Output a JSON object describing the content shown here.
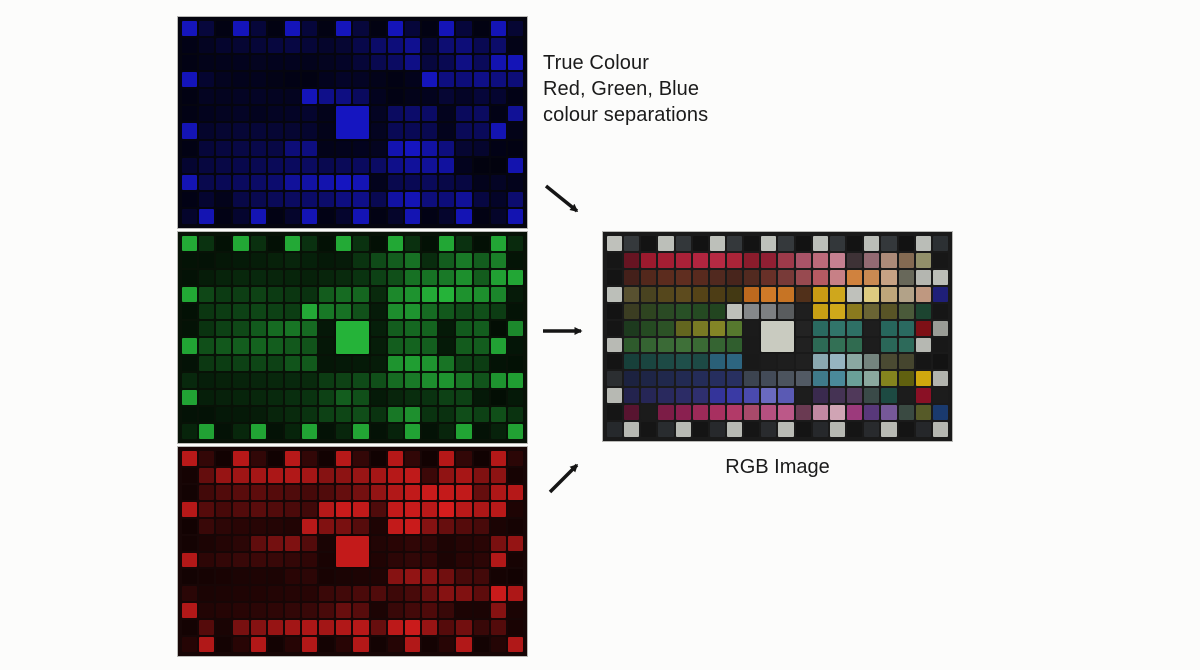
{
  "captions": {
    "separations": [
      "True Colour",
      "Red, Green, Blue",
      "colour separations"
    ],
    "rgb_image": "RGB Image"
  },
  "colors": {
    "text": "#1b1b1b",
    "canvas_bg": "#fcfcfb",
    "arrow": "#151515"
  },
  "chart": {
    "type": "color-checker-grid",
    "cols": 20,
    "rows": 12,
    "big_patch": {
      "col": 10,
      "row": 6,
      "col_span": 2,
      "row_span": 2,
      "color": "#c9cbc0"
    },
    "palette": [
      [
        "#bfc1bb",
        "#35393c",
        "#131313",
        "#bcbfb9",
        "#33373a",
        "#121212",
        "#bdc0ba",
        "#34383b",
        "#131313",
        "#bec1bb",
        "#35393c",
        "#121212",
        "#bcbfb9",
        "#33373a",
        "#131313",
        "#bbbeb8",
        "#34383b",
        "#121212",
        "#babdb7",
        "#2c3033"
      ],
      [
        "#161616",
        "#671422",
        "#9c1a2e",
        "#a41e33",
        "#aa2138",
        "#b0253f",
        "#b62a43",
        "#aa2438",
        "#8a1c2c",
        "#911f33",
        "#9e3a4a",
        "#aa5468",
        "#bc6a7a",
        "#c58090",
        "#3e3236",
        "#946a72",
        "#ac8a78",
        "#846a52",
        "#92906a",
        "#171717"
      ],
      [
        "#141414",
        "#44201a",
        "#53281c",
        "#5c2c1e",
        "#602e20",
        "#582a1e",
        "#51291f",
        "#48251c",
        "#522a20",
        "#683028",
        "#783a38",
        "#984a50",
        "#b65a62",
        "#c78086",
        "#d0823e",
        "#ca8a52",
        "#c7a284",
        "#68685a",
        "#b4b6b0",
        "#bbbdb7"
      ],
      [
        "#bcbfb9",
        "#585130",
        "#494320",
        "#55471c",
        "#5d4b1e",
        "#554317",
        "#4d3d15",
        "#433913",
        "#bd691e",
        "#cf7a28",
        "#c77424",
        "#51301a",
        "#c99b14",
        "#cfa71c",
        "#bfc1bb",
        "#ddcb80",
        "#bfa67a",
        "#b2a288",
        "#bf9880",
        "#1f1f78"
      ],
      [
        "#131313",
        "#3b3d22",
        "#2e4420",
        "#2a4a24",
        "#285026",
        "#254a22",
        "#224520",
        "#bec0ba",
        "#85888a",
        "#7d8082",
        "#595c5e",
        "#1f1f1f",
        "#c8a014",
        "#cfa81a",
        "#8a7a1e",
        "#6a6434",
        "#585426",
        "#4a5a3a",
        "#1c4430",
        "#161616"
      ],
      [
        "#151515",
        "#1d3a1e",
        "#254a22",
        "#2c5226",
        "#63661f",
        "#787a24",
        "#838526",
        "#56782e",
        "#1b1b1b",
        "#0f0f0f",
        "#0f0f0f",
        "#232323",
        "#2a6a60",
        "#31756a",
        "#2e7065",
        "#1e1e1e",
        "#27665c",
        "#2a6a60",
        "#7e1016",
        "#9a9c96"
      ],
      [
        "#b8bab4",
        "#2e5a2c",
        "#356432",
        "#3a6a36",
        "#3e7038",
        "#3a6a34",
        "#356432",
        "#305e2e",
        "#1a1a1a",
        "#0f0f0f",
        "#0f0f0f",
        "#212121",
        "#2d6a55",
        "#337055",
        "#306b50",
        "#1d1d1d",
        "#2a6758",
        "#2d6a5a",
        "#b6b8b2",
        "#181818"
      ],
      [
        "#141414",
        "#17403a",
        "#1a4540",
        "#1d4a45",
        "#1f4f4a",
        "#1d4a45",
        "#2a6078",
        "#2d6580",
        "#191919",
        "#1c1c1c",
        "#1e1e1e",
        "#202020",
        "#8aa8b0",
        "#96b4c0",
        "#8aa8a2",
        "#74847e",
        "#4a4a32",
        "#45452e",
        "#161616",
        "#131313"
      ],
      [
        "#2b2e31",
        "#1c2240",
        "#1e2546",
        "#20284c",
        "#222a52",
        "#242c58",
        "#262e5e",
        "#283060",
        "#3c4450",
        "#434b58",
        "#4c545e",
        "#525a64",
        "#3f7a8a",
        "#4a8a9a",
        "#6aa098",
        "#8aa89e",
        "#84841e",
        "#60600f",
        "#cfa80e",
        "#b2b4ae"
      ],
      [
        "#b7b9b3",
        "#23234e",
        "#262656",
        "#29295e",
        "#2c2c66",
        "#2f2f6e",
        "#34349a",
        "#3a3aa4",
        "#4a4aae",
        "#6a6ac0",
        "#5a5ab4",
        "#1d1d1d",
        "#3a2a4e",
        "#453354",
        "#50395a",
        "#3a4a48",
        "#1d4a42",
        "#1c1c1c",
        "#8a1025",
        "#1c1c1c"
      ],
      [
        "#151515",
        "#581430",
        "#1b1b1b",
        "#7c1c46",
        "#8a2050",
        "#9c2a58",
        "#a83060",
        "#b23a68",
        "#a84a6a",
        "#b65080",
        "#bc5888",
        "#6a3a52",
        "#c288a2",
        "#d0a4b4",
        "#9c3a7c",
        "#58387a",
        "#765898",
        "#3a4a42",
        "#565a28",
        "#1a3a6e"
      ],
      [
        "#26292c",
        "#b6b8b2",
        "#151515",
        "#292c2f",
        "#b8bab4",
        "#141414",
        "#27292c",
        "#b7b9b3",
        "#151515",
        "#292b2e",
        "#b9bbb5",
        "#141414",
        "#26282b",
        "#b6b8b2",
        "#151515",
        "#282a2d",
        "#b8bab4",
        "#141414",
        "#25272a",
        "#b5b7b1"
      ]
    ],
    "panels": {
      "blue": {
        "channel": "b",
        "mix": {
          "r": 0.11,
          "g": 0.11,
          "b": 1.0
        },
        "bg": "#05050f"
      },
      "green": {
        "channel": "g",
        "mix": {
          "r": 0.18,
          "g": 0.88,
          "b": 0.28
        },
        "bg": "#081207"
      },
      "red": {
        "channel": "r",
        "mix": {
          "r": 0.97,
          "g": 0.13,
          "b": 0.13
        },
        "bg": "#170606"
      },
      "rgb": {
        "channel": null,
        "mix": null,
        "bg": "#1a1a1a"
      }
    }
  }
}
